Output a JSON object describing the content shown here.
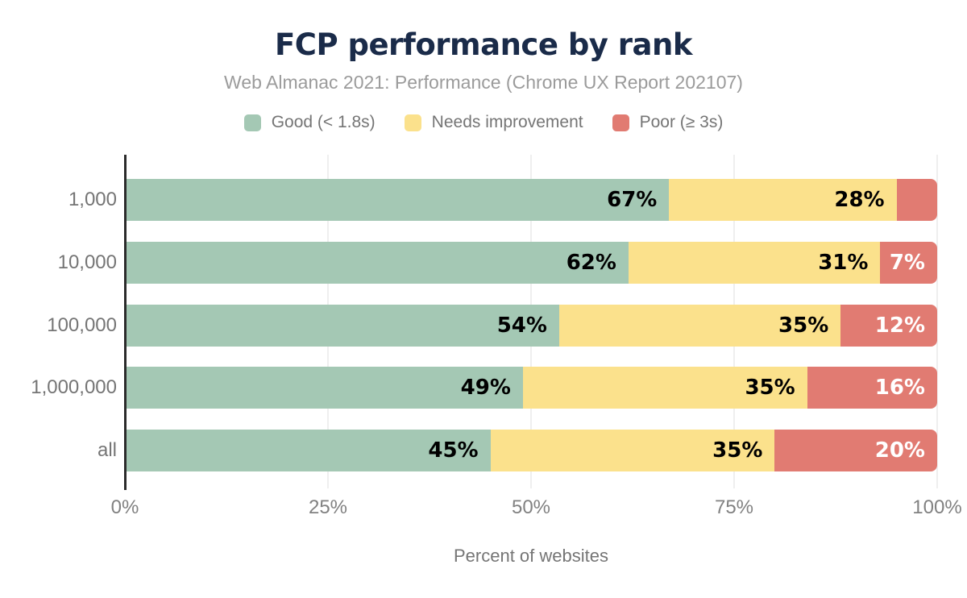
{
  "colors": {
    "background": "#ffffff",
    "title": "#1a2b49",
    "subtitle": "#9b9b9b",
    "legend_text": "#757575",
    "axis_text": "#818181",
    "axis_line": "#2b2b2b",
    "gridline": "#efefef",
    "good": "#a4c8b4",
    "needs_improvement": "#fbe18c",
    "poor": "#e17b72"
  },
  "chart_data": {
    "type": "bar",
    "orientation": "horizontal-stacked",
    "title": "FCP performance by rank",
    "subtitle": "Web Almanac 2021: Performance (Chrome UX Report 202107)",
    "categories": [
      "1,000",
      "10,000",
      "100,000",
      "1,000,000",
      "all"
    ],
    "series": [
      {
        "name": "Good (< 1.8s)",
        "color": "#a4c8b4",
        "label_color": "#000000",
        "values": [
          67,
          62,
          54,
          49,
          45
        ]
      },
      {
        "name": "Needs improvement",
        "color": "#fbe18c",
        "label_color": "#000000",
        "values": [
          28,
          31,
          35,
          35,
          35
        ]
      },
      {
        "name": "Poor (≥ 3s)",
        "color": "#e17b72",
        "label_color": "#ffffff",
        "values": [
          5,
          7,
          12,
          16,
          20
        ]
      }
    ],
    "segment_labels": [
      [
        "67%",
        "28%",
        ""
      ],
      [
        "62%",
        "31%",
        "7%"
      ],
      [
        "54%",
        "35%",
        "12%"
      ],
      [
        "49%",
        "35%",
        "16%"
      ],
      [
        "45%",
        "35%",
        "20%"
      ]
    ],
    "xlabel": "Percent of websites",
    "x_ticks": [
      "0%",
      "25%",
      "50%",
      "75%",
      "100%"
    ],
    "x_tick_values": [
      0,
      25,
      50,
      75,
      100
    ],
    "xlim": [
      0,
      100
    ],
    "grid": "vertical",
    "legend_position": "top"
  }
}
